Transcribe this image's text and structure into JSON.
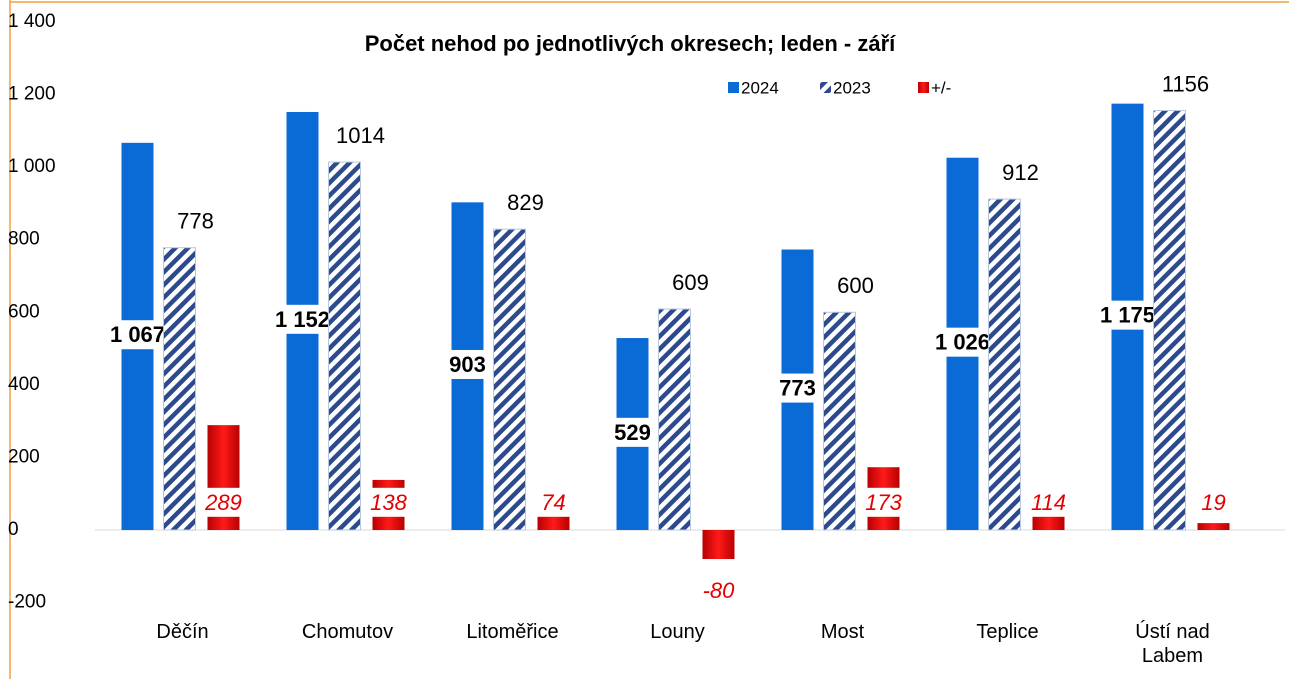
{
  "chart_data": {
    "type": "bar",
    "title": "Počet nehod po jednotlivých okresech; leden - září",
    "categories": [
      "Děčín",
      "Chomutov",
      "Litoměřice",
      "Louny",
      "Most",
      "Teplice",
      "Ústí nad Labem"
    ],
    "series": [
      {
        "name": "2024",
        "color": "#0b6bd6",
        "values": [
          1067,
          1152,
          903,
          529,
          773,
          1026,
          1175
        ],
        "value_labels": [
          "1 067",
          "1 152",
          "903",
          "529",
          "773",
          "1 026",
          "1 175"
        ]
      },
      {
        "name": "2023",
        "color": "#2c4a8c",
        "values": [
          778,
          1014,
          829,
          609,
          600,
          912,
          1156
        ]
      },
      {
        "name": "+/-",
        "color": "#e40000",
        "values": [
          289,
          138,
          74,
          -80,
          173,
          114,
          19
        ]
      }
    ],
    "ylim": [
      -200,
      1400
    ],
    "yticks": [
      -200,
      0,
      200,
      400,
      600,
      800,
      {
        "value": 1000,
        "label": "1 000"
      },
      {
        "value": 1200,
        "label": "1 200"
      },
      {
        "value": 1400,
        "label": "1 400"
      }
    ]
  }
}
